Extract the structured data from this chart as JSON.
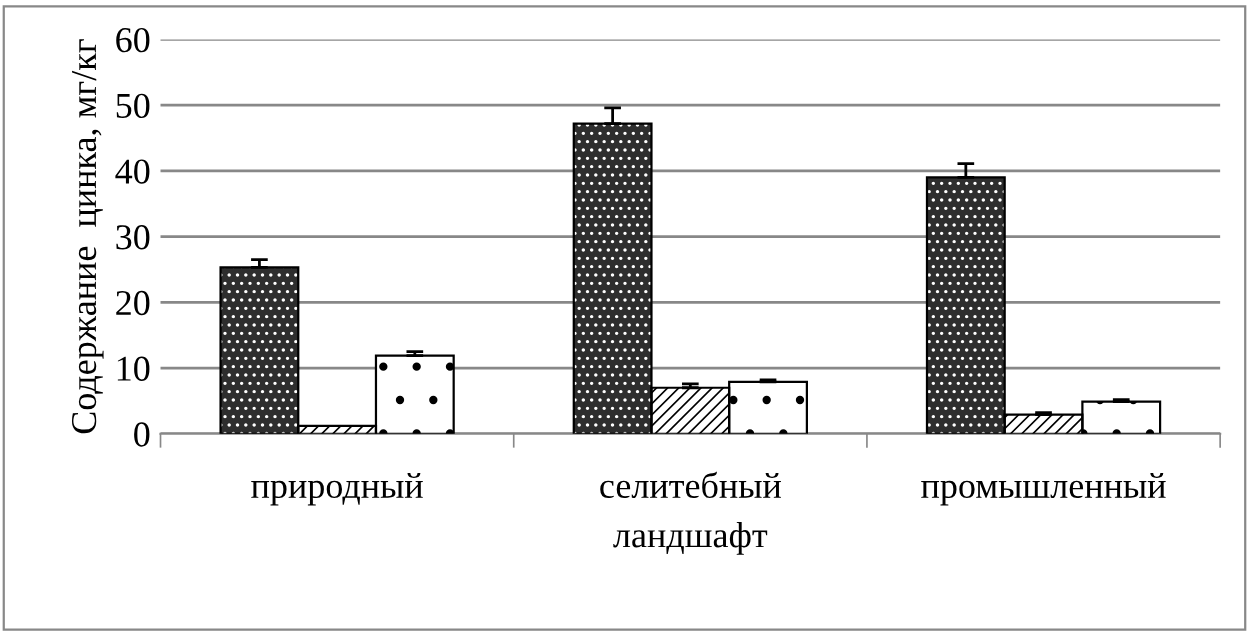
{
  "chart_data": {
    "type": "bar",
    "xlabel": "ландшафт",
    "ylabel": "Содержание  цинка, мг/кг",
    "categories": [
      "природный",
      "селитебный",
      "промышленный"
    ],
    "series": [
      {
        "color": "#2e2e2e",
        "values": [
          25.3,
          47.2,
          39.0
        ],
        "errors": [
          1.2,
          2.4,
          2.1
        ]
      },
      {
        "color": "#ffffff",
        "values": [
          1.2,
          7.0,
          2.9
        ],
        "errors": [
          null,
          0.6,
          0.3
        ]
      },
      {
        "color": "#ffffff",
        "values": [
          11.9,
          7.9,
          4.9
        ],
        "errors": [
          0.6,
          0.3,
          0.3
        ]
      }
    ],
    "ylim": [
      0,
      60
    ],
    "yticks": [
      0,
      10,
      20,
      30,
      40,
      50,
      60
    ],
    "grid": "y",
    "legend": false
  }
}
